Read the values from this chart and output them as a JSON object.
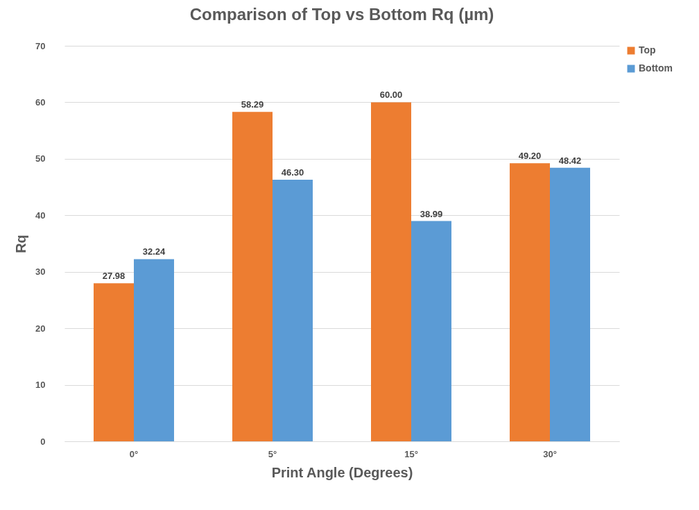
{
  "chart_data": {
    "type": "bar",
    "title": "Comparison of Top vs Bottom Rq (µm)",
    "xlabel": "Print Angle (Degrees)",
    "ylabel": "Rq",
    "categories": [
      "0°",
      "5°",
      "15°",
      "30°"
    ],
    "series": [
      {
        "name": "Top",
        "color": "#ed7d31",
        "values": [
          27.98,
          58.29,
          60.0,
          49.2
        ],
        "value_labels": [
          "27.98",
          "58.29",
          "60.00",
          "49.20"
        ]
      },
      {
        "name": "Bottom",
        "color": "#5b9bd5",
        "values": [
          32.24,
          46.3,
          38.99,
          48.42
        ],
        "value_labels": [
          "32.24",
          "46.30",
          "38.99",
          "48.42"
        ]
      }
    ],
    "ylim": [
      0,
      70
    ],
    "yticks": [
      0,
      10,
      20,
      30,
      40,
      50,
      60,
      70
    ],
    "grid": "y",
    "legend": "right"
  }
}
